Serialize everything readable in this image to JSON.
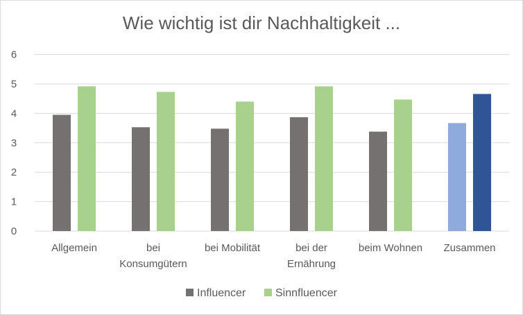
{
  "chart_data": {
    "type": "bar",
    "title": "Wie wichtig ist dir Nachhaltigkeit ...",
    "categories": [
      [
        "Allgemein"
      ],
      [
        "bei",
        "Konsumgütern"
      ],
      [
        "bei Mobilität"
      ],
      [
        "bei der",
        "Ernährung"
      ],
      [
        "beim Wohnen"
      ],
      [
        "Zusammen"
      ]
    ],
    "series": [
      {
        "name": "Influencer",
        "values": [
          3.95,
          3.53,
          3.48,
          3.87,
          3.38,
          3.67
        ],
        "color": "#767171"
      },
      {
        "name": "Sinnfluencer",
        "values": [
          4.92,
          4.73,
          4.4,
          4.92,
          4.47,
          4.66
        ],
        "color": "#a9d18e"
      }
    ],
    "highlight": {
      "category_index": 5,
      "colors": [
        "#8faadc",
        "#2f5597"
      ]
    },
    "yticks": [
      "0",
      "1",
      "2",
      "3",
      "4",
      "5",
      "6"
    ],
    "ylim": [
      0,
      6
    ],
    "grid": true,
    "legend": "bottom-center"
  }
}
